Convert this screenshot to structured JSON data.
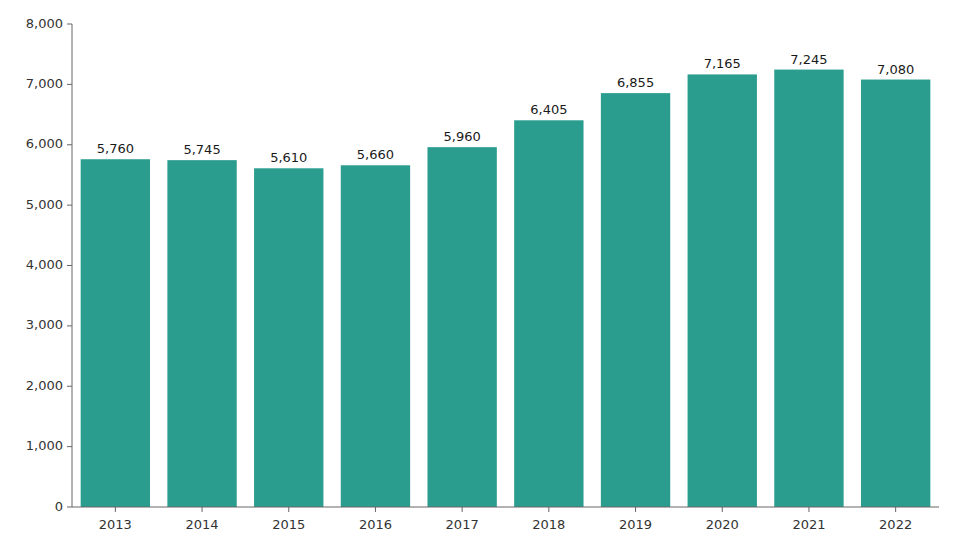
{
  "chart_data": {
    "type": "bar",
    "categories": [
      "2013",
      "2014",
      "2015",
      "2016",
      "2017",
      "2018",
      "2019",
      "2020",
      "2021",
      "2022"
    ],
    "values": [
      5760,
      5745,
      5610,
      5660,
      5960,
      6405,
      6855,
      7165,
      7245,
      7080
    ],
    "value_labels": [
      "5,760",
      "5,745",
      "5,610",
      "5,660",
      "5,960",
      "6,405",
      "6,855",
      "7,165",
      "7,245",
      "7,080"
    ],
    "color": "#2A9D8F",
    "ylim": [
      0,
      8000
    ],
    "yticks": [
      0,
      {
        "value": 1000,
        "label": "1,000"
      },
      {
        "value": 2000,
        "label": "2,000"
      },
      {
        "value": 3000,
        "label": "3,000"
      },
      {
        "value": 4000,
        "label": "4,000"
      },
      {
        "value": 5000,
        "label": "5,000"
      },
      {
        "value": 6000,
        "label": "6,000"
      },
      {
        "value": 7000,
        "label": "7,000"
      },
      {
        "value": 8000,
        "label": "8,000"
      }
    ],
    "grid": false,
    "data_labels": true
  }
}
